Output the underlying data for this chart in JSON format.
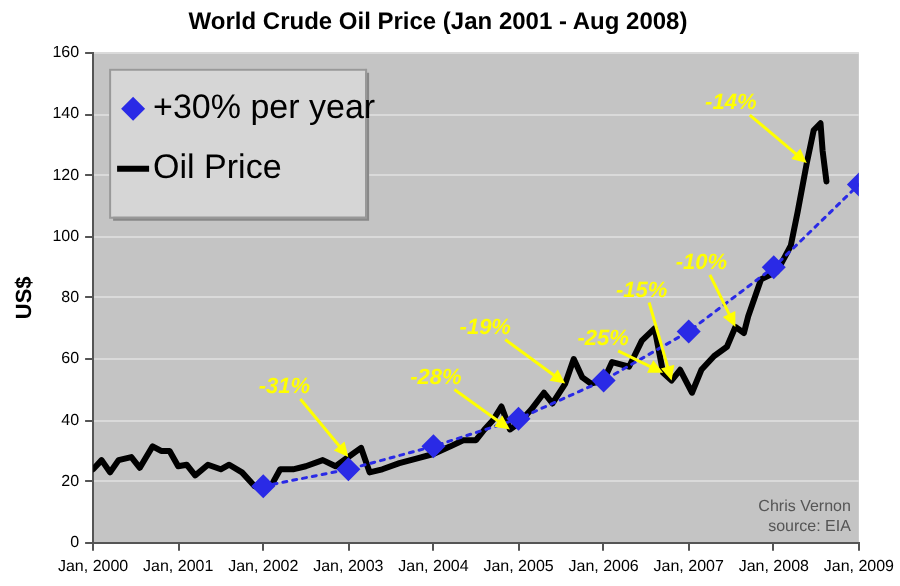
{
  "chart_data": {
    "type": "line",
    "title": "World Crude Oil Price (Jan 2001 - Aug 2008)",
    "ylabel": "US$",
    "xlim": [
      "2000-01-01",
      "2009-01-01"
    ],
    "xticks": [
      {
        "value": "2000-01-01",
        "label": "Jan, 2000"
      },
      {
        "value": "2001-01-01",
        "label": "Jan, 2001"
      },
      {
        "value": "2002-01-01",
        "label": "Jan, 2002"
      },
      {
        "value": "2003-01-01",
        "label": "Jan, 2003"
      },
      {
        "value": "2004-01-01",
        "label": "Jan, 2004"
      },
      {
        "value": "2005-01-01",
        "label": "Jan, 2005"
      },
      {
        "value": "2006-01-01",
        "label": "Jan, 2006"
      },
      {
        "value": "2007-01-01",
        "label": "Jan, 2007"
      },
      {
        "value": "2008-01-01",
        "label": "Jan, 2008"
      },
      {
        "value": "2009-01-01",
        "label": "Jan, 2009"
      }
    ],
    "ylim": [
      0,
      160
    ],
    "yticks": [
      0,
      20,
      40,
      60,
      80,
      100,
      120,
      140,
      160
    ],
    "grid": "y",
    "legend": "top left",
    "series": [
      {
        "name": "+30% per year",
        "color": "#2a2ae6",
        "marker": "diamond",
        "line_style": "dotted",
        "x": [
          "2002-01-01",
          "2003-01-01",
          "2004-01-01",
          "2005-01-01",
          "2006-01-01",
          "2007-01-01",
          "2008-01-01",
          "2009-01-01"
        ],
        "values": [
          18.5,
          24,
          31.5,
          40.5,
          53,
          69,
          90,
          117
        ]
      },
      {
        "name": "Oil Price",
        "color": "#000000",
        "marker": "none",
        "line_style": "solid",
        "x": [
          "2000-01-01",
          "2000-02-07",
          "2000-03-13",
          "2000-04-19",
          "2000-06-13",
          "2000-07-19",
          "2000-09-13",
          "2000-10-19",
          "2000-11-25",
          "2001-01-01",
          "2001-02-07",
          "2001-03-13",
          "2001-05-07",
          "2001-07-01",
          "2001-08-07",
          "2001-10-01",
          "2001-11-25",
          "2002-01-01",
          "2002-02-07",
          "2002-03-13",
          "2002-05-07",
          "2002-07-01",
          "2002-09-13",
          "2002-11-07",
          "2003-01-01",
          "2003-02-25",
          "2003-04-01",
          "2003-05-25",
          "2003-08-07",
          "2003-10-19",
          "2004-01-01",
          "2004-03-13",
          "2004-05-07",
          "2004-07-01",
          "2004-08-07",
          "2004-09-13",
          "2004-10-19",
          "2004-11-25",
          "2005-01-01",
          "2005-02-25",
          "2005-04-19",
          "2005-05-25",
          "2005-07-19",
          "2005-08-25",
          "2005-10-01",
          "2005-11-07",
          "2006-01-01",
          "2006-02-07",
          "2006-04-19",
          "2006-06-13",
          "2006-08-07",
          "2006-09-13",
          "2006-10-19",
          "2006-11-25",
          "2007-01-15",
          "2007-02-25",
          "2007-04-19",
          "2007-06-13",
          "2007-07-19",
          "2007-08-25",
          "2007-09-13",
          "2007-11-07",
          "2008-01-15",
          "2008-03-13",
          "2008-04-12",
          "2008-05-21",
          "2008-06-20",
          "2008-07-19",
          "2008-07-28",
          "2008-08-14"
        ],
        "values": [
          24,
          27,
          23,
          27,
          28,
          24.5,
          31.5,
          30,
          30,
          25,
          25.5,
          22,
          25.5,
          24,
          25.5,
          23,
          18.5,
          17.5,
          19,
          24,
          24,
          25,
          27,
          25,
          28,
          31,
          23,
          24,
          26,
          27.5,
          29,
          31.5,
          33.5,
          33.5,
          37,
          40,
          44.5,
          37,
          39,
          43.5,
          49,
          45.5,
          52,
          60,
          54,
          52,
          53,
          59,
          57.5,
          66,
          70,
          55.5,
          53,
          56.5,
          49,
          56.5,
          61,
          64,
          70.5,
          68.5,
          74,
          86,
          88.6,
          97,
          108,
          124,
          134.7,
          137,
          128,
          118
        ]
      }
    ],
    "annotations": [
      {
        "text": "-31%",
        "x": "2003-01-01",
        "y": 28
      },
      {
        "text": "-28%",
        "x": "2004-11-25",
        "y": 37
      },
      {
        "text": "-19%",
        "x": "2005-07-19",
        "y": 52
      },
      {
        "text": "-25%",
        "x": "2006-09-13",
        "y": 55.5
      },
      {
        "text": "-15%",
        "x": "2006-10-19",
        "y": 53
      },
      {
        "text": "-10%",
        "x": "2007-07-19",
        "y": 70.5
      },
      {
        "text": "-14%",
        "x": "2008-05-21",
        "y": 124
      },
      "Chris Vernon",
      "source: EIA"
    ]
  }
}
